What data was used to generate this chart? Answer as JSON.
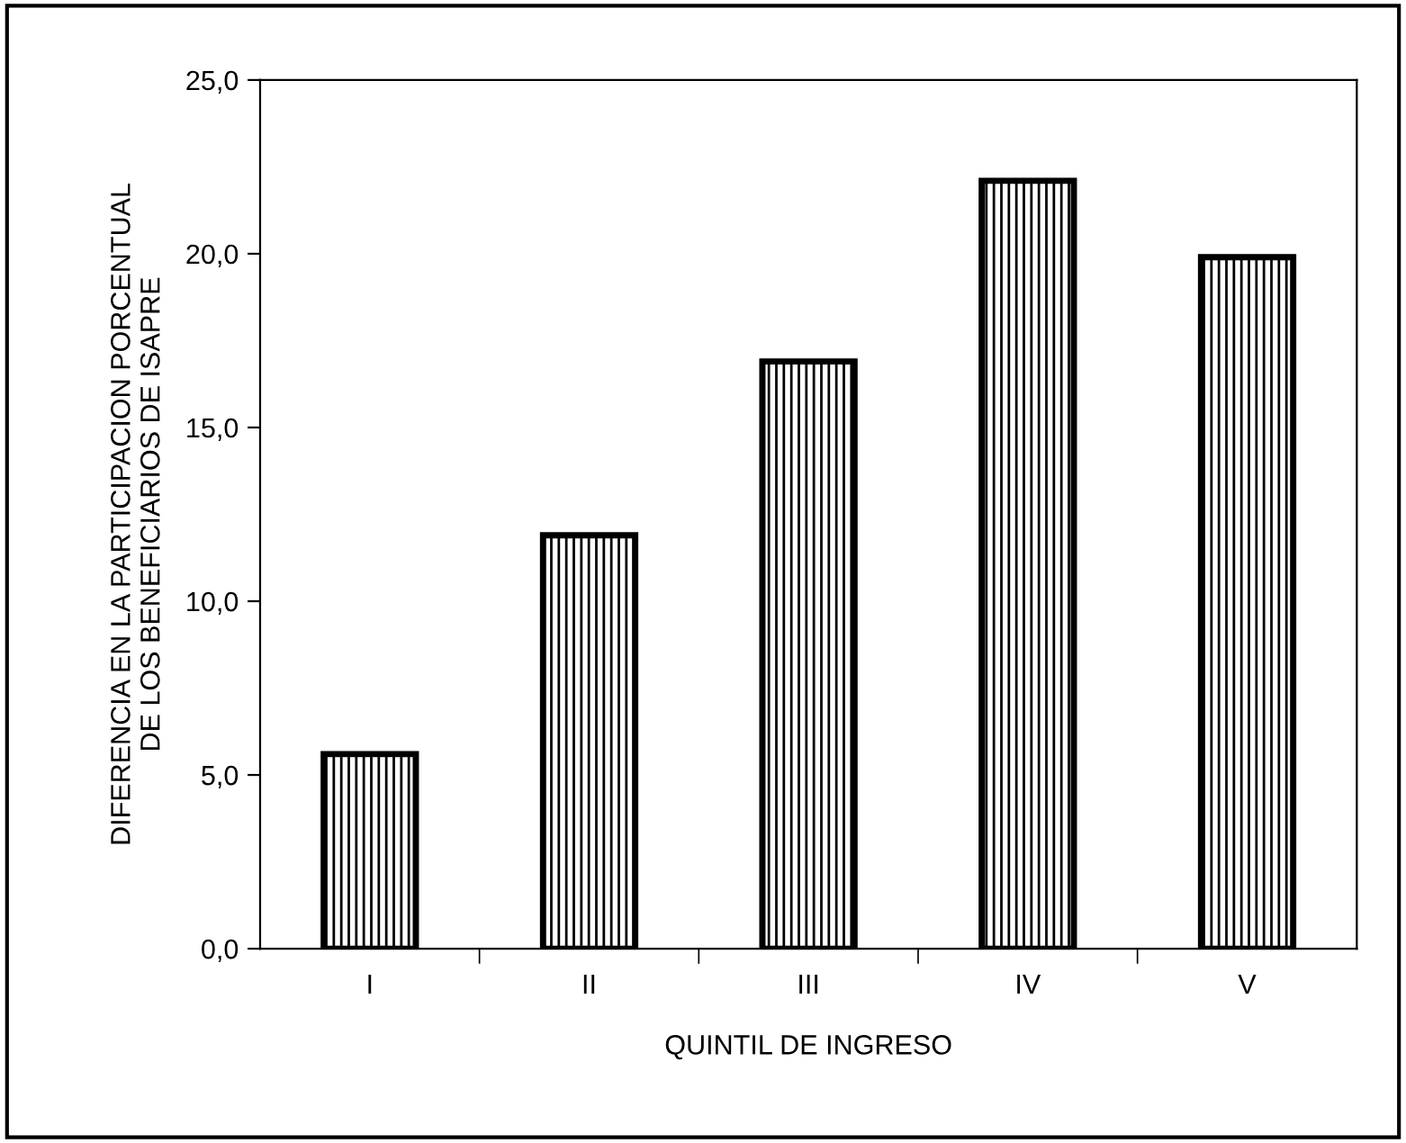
{
  "chart_data": {
    "type": "bar",
    "xlabel": "QUINTIL DE INGRESO",
    "ylabel": "DIFERENCIA EN LA PARTICIPACION PORCENTUAL\nDE LOS BENEFICIARIOS DE ISAPRE",
    "categories": [
      "I",
      "II",
      "III",
      "IV",
      "V"
    ],
    "values": [
      5.6,
      11.9,
      16.9,
      22.1,
      19.9
    ],
    "color": "#000000",
    "ylim": [
      0,
      25
    ],
    "yticks": [
      {
        "value": 0,
        "label": "0,0"
      },
      {
        "value": 5,
        "label": "5,0"
      },
      {
        "value": 10,
        "label": "10,0"
      },
      {
        "value": 15,
        "label": "15,0"
      },
      {
        "value": 20,
        "label": "20,0"
      },
      {
        "value": 25,
        "label": "25,0"
      }
    ],
    "grid": false
  }
}
